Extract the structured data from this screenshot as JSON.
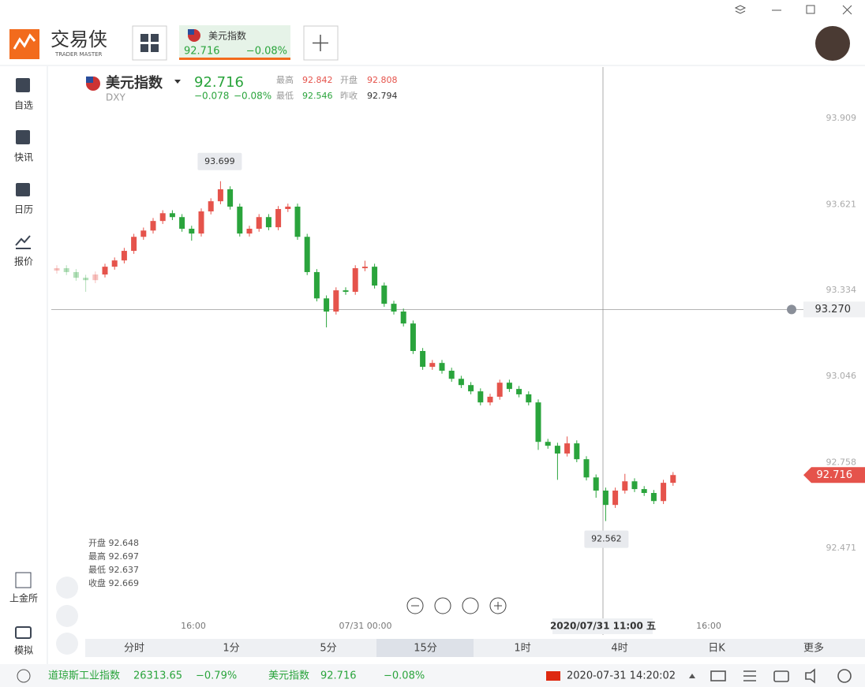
{
  "window": {
    "logo_name": "交易侠",
    "logo_sub": "TRADER MASTER",
    "tab_name": "美元指数",
    "tab_price": "92.716",
    "tab_change": "−0.08%"
  },
  "sidebar": [
    "自选",
    "快讯",
    "日历",
    "报价"
  ],
  "sidebar_bottom": [
    "上金所",
    "模拟"
  ],
  "header": {
    "name": "美元指数",
    "code": "DXY",
    "price": "92.716",
    "change": "−0.078",
    "change_pct": "−0.08%",
    "high_label": "最高",
    "high": "92.842",
    "open_label": "开盘",
    "open": "92.808",
    "low_label": "最低",
    "low": "92.546",
    "prev_label": "昨收",
    "prev": "92.794"
  },
  "ohlc_info": [
    "开盘 92.648",
    "最高 92.697",
    "最低 92.637",
    "收盘 92.669"
  ],
  "chart_data": {
    "type": "candlestick",
    "up_color": "#e5534b",
    "down_color": "#2aa43c",
    "ylim": [
      92.181,
      94.081
    ],
    "yticks": [
      93.909,
      93.621,
      93.334,
      93.046,
      92.758,
      92.471
    ],
    "time_labels": [
      "16:00",
      "07/31 00:00",
      "16:00"
    ],
    "crosshair": {
      "price": {
        "value": 93.27,
        "label": "93.270"
      },
      "time": "2020/07/31 11:00 五"
    },
    "ohlc": [
      [
        93.4,
        93.418,
        93.39,
        93.408
      ],
      [
        93.408,
        93.418,
        93.385,
        93.395
      ],
      [
        93.395,
        93.405,
        93.366,
        93.376
      ],
      [
        93.376,
        93.386,
        93.329,
        93.368
      ],
      [
        93.368,
        93.397,
        93.358,
        93.387
      ],
      [
        93.387,
        93.423,
        93.377,
        93.413
      ],
      [
        93.413,
        93.444,
        93.403,
        93.434
      ],
      [
        93.434,
        93.476,
        93.424,
        93.466
      ],
      [
        93.466,
        93.523,
        93.456,
        93.513
      ],
      [
        93.513,
        93.544,
        93.503,
        93.534
      ],
      [
        93.534,
        93.576,
        93.524,
        93.566
      ],
      [
        93.566,
        93.602,
        93.556,
        93.592
      ],
      [
        93.592,
        93.602,
        93.569,
        93.579
      ],
      [
        93.579,
        93.589,
        93.53,
        93.54
      ],
      [
        93.54,
        93.55,
        93.5,
        93.524
      ],
      [
        93.524,
        93.608,
        93.514,
        93.598
      ],
      [
        93.598,
        93.642,
        93.588,
        93.632
      ],
      [
        93.632,
        93.699,
        93.622,
        93.672
      ],
      [
        93.672,
        93.682,
        93.604,
        93.614
      ],
      [
        93.614,
        93.624,
        93.514,
        93.524
      ],
      [
        93.524,
        93.55,
        93.514,
        93.54
      ],
      [
        93.54,
        93.589,
        93.53,
        93.579
      ],
      [
        93.579,
        93.589,
        93.535,
        93.545
      ],
      [
        93.545,
        93.616,
        93.535,
        93.606
      ],
      [
        93.606,
        93.624,
        93.596,
        93.614
      ],
      [
        93.614,
        93.624,
        93.503,
        93.513
      ],
      [
        93.513,
        93.523,
        93.385,
        93.395
      ],
      [
        93.395,
        93.405,
        93.297,
        93.307
      ],
      [
        93.307,
        93.317,
        93.21,
        93.263
      ],
      [
        93.263,
        93.344,
        93.253,
        93.334
      ],
      [
        93.334,
        93.344,
        93.319,
        93.329
      ],
      [
        93.329,
        93.418,
        93.319,
        93.408
      ],
      [
        93.408,
        93.433,
        93.398,
        93.413
      ],
      [
        93.413,
        93.423,
        93.34,
        93.35
      ],
      [
        93.35,
        93.36,
        93.279,
        93.289
      ],
      [
        93.289,
        93.299,
        93.253,
        93.263
      ],
      [
        93.263,
        93.273,
        93.213,
        93.223
      ],
      [
        93.223,
        93.233,
        93.121,
        93.131
      ],
      [
        93.131,
        93.141,
        93.068,
        93.078
      ],
      [
        93.078,
        93.101,
        93.068,
        93.091
      ],
      [
        93.091,
        93.101,
        93.055,
        93.065
      ],
      [
        93.065,
        93.075,
        93.028,
        93.038
      ],
      [
        93.038,
        93.048,
        93.007,
        93.017
      ],
      [
        93.017,
        93.027,
        92.986,
        92.996
      ],
      [
        92.996,
        93.006,
        92.949,
        92.959
      ],
      [
        92.959,
        92.988,
        92.949,
        92.978
      ],
      [
        92.978,
        93.035,
        92.968,
        93.025
      ],
      [
        93.025,
        93.035,
        92.994,
        93.004
      ],
      [
        93.004,
        93.014,
        92.976,
        92.986
      ],
      [
        92.986,
        92.996,
        92.949,
        92.959
      ],
      [
        92.959,
        92.969,
        92.8,
        92.827
      ],
      [
        92.827,
        92.837,
        92.804,
        92.814
      ],
      [
        92.814,
        92.824,
        92.7,
        92.788
      ],
      [
        92.788,
        92.845,
        92.778,
        92.822
      ],
      [
        92.822,
        92.832,
        92.759,
        92.769
      ],
      [
        92.769,
        92.779,
        92.698,
        92.708
      ],
      [
        92.708,
        92.718,
        92.64,
        92.664
      ],
      [
        92.664,
        92.674,
        92.562,
        92.616
      ],
      [
        92.616,
        92.674,
        92.606,
        92.664
      ],
      [
        92.664,
        92.72,
        92.654,
        92.695
      ],
      [
        92.695,
        92.705,
        92.659,
        92.669
      ],
      [
        92.669,
        92.679,
        92.646,
        92.656
      ],
      [
        92.656,
        92.666,
        92.619,
        92.629
      ],
      [
        92.629,
        92.7,
        92.619,
        92.69
      ],
      [
        92.69,
        92.726,
        92.68,
        92.716
      ]
    ]
  },
  "periods": [
    "分时",
    "1分",
    "5分",
    "15分",
    "1时",
    "4时",
    "日K",
    "更多"
  ],
  "status": {
    "index1_name": "道琼斯工业指数",
    "index1_price": "26313.65",
    "index1_change": "−0.79%",
    "index2_name": "美元指数",
    "index2_price": "92.716",
    "index2_change": "−0.08%",
    "datetime": "2020-07-31 14:20:02"
  }
}
